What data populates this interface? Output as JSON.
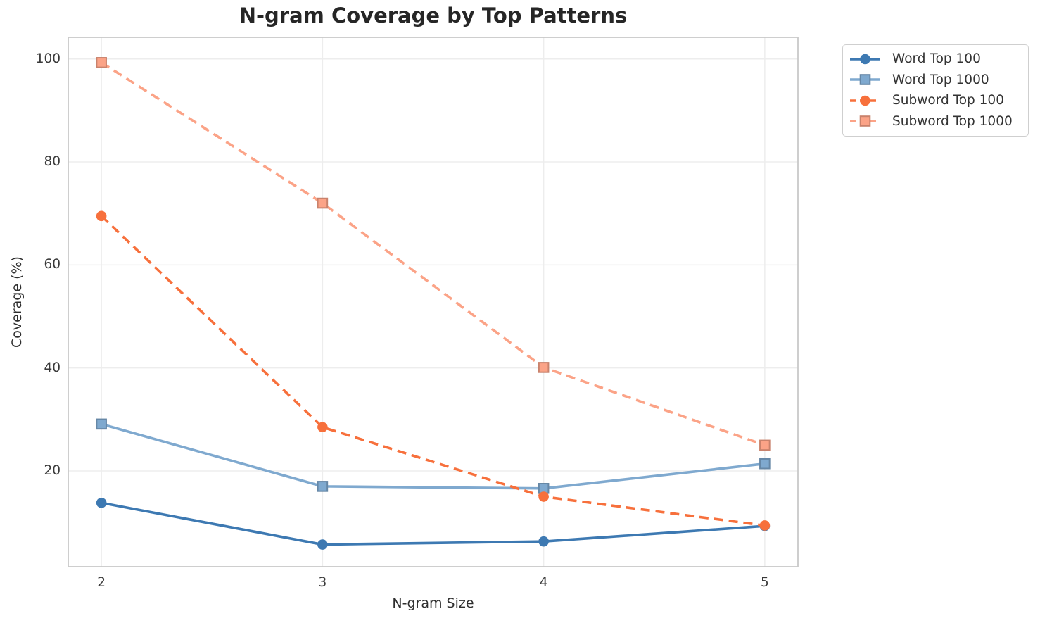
{
  "chart_data": {
    "type": "line",
    "title": "N-gram Coverage by Top Patterns",
    "xlabel": "N-gram Size",
    "ylabel": "Coverage (%)",
    "x": [
      2,
      3,
      4,
      5
    ],
    "xticks": [
      2,
      3,
      4,
      5
    ],
    "yticks": [
      20,
      40,
      60,
      80,
      100
    ],
    "xlim": [
      1.85,
      5.15
    ],
    "ylim": [
      1.4,
      104.2
    ],
    "grid": true,
    "legend_position": "outside-top-right",
    "series": [
      {
        "name": "Word Top 100",
        "marker": "circle",
        "line": "solid",
        "color": "#3d79b2",
        "values": [
          13.8,
          5.7,
          6.3,
          9.3
        ]
      },
      {
        "name": "Word Top 1000",
        "marker": "square",
        "line": "solid",
        "color": "#7fa9cf",
        "values": [
          29.1,
          17.0,
          16.6,
          21.4
        ]
      },
      {
        "name": "Subword Top 100",
        "marker": "circle",
        "line": "dashed",
        "color": "#f7703c",
        "values": [
          69.5,
          28.5,
          15.0,
          9.4
        ]
      },
      {
        "name": "Subword Top 1000",
        "marker": "square",
        "line": "dashed",
        "color": "#fba387",
        "values": [
          99.3,
          72.0,
          40.1,
          25.0
        ]
      }
    ],
    "style": {
      "grid_color": "#ededed",
      "spine_color": "#c9c9c9",
      "tick_label_color": "#3a3a3a",
      "title_color": "#262626",
      "background": "#ffffff"
    }
  }
}
